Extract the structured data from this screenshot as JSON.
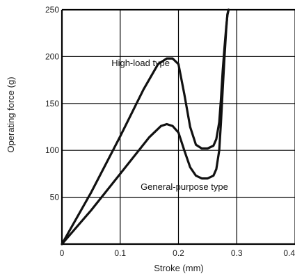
{
  "chart_data": {
    "type": "line",
    "title": "",
    "xlabel": "Stroke (mm)",
    "ylabel": "Operating force (g)",
    "xlim": [
      0,
      0.4
    ],
    "ylim": [
      0,
      250
    ],
    "x_ticks": [
      "0",
      "0.1",
      "0.2",
      "0.3",
      "0.4"
    ],
    "y_ticks": [
      "50",
      "100",
      "150",
      "200",
      "250"
    ],
    "grid": true,
    "legend": "none",
    "series": [
      {
        "name": "High-load type",
        "x": [
          0,
          0.05,
          0.1,
          0.14,
          0.165,
          0.18,
          0.19,
          0.2,
          0.21,
          0.22,
          0.23,
          0.24,
          0.25,
          0.26,
          0.265,
          0.27,
          0.273,
          0.276,
          0.279,
          0.282,
          0.284,
          0.286
        ],
        "y": [
          0,
          55,
          115,
          165,
          192,
          198,
          198,
          192,
          160,
          125,
          106,
          102,
          102,
          105,
          112,
          130,
          155,
          185,
          210,
          232,
          244,
          250
        ]
      },
      {
        "name": "General-purpose type",
        "x": [
          0,
          0.05,
          0.1,
          0.15,
          0.17,
          0.18,
          0.19,
          0.2,
          0.21,
          0.22,
          0.23,
          0.24,
          0.25,
          0.26,
          0.265,
          0.27,
          0.273,
          0.276,
          0.279,
          0.282,
          0.284,
          0.286
        ],
        "y": [
          0,
          36,
          75,
          114,
          126,
          128,
          126,
          119,
          100,
          82,
          73,
          70,
          70,
          73,
          80,
          100,
          130,
          165,
          200,
          230,
          245,
          250
        ]
      }
    ],
    "annotations": [
      {
        "text": "High-load type",
        "x": 0.085,
        "y": 190
      },
      {
        "text": "General-purpose type",
        "x": 0.135,
        "y": 58
      }
    ]
  }
}
